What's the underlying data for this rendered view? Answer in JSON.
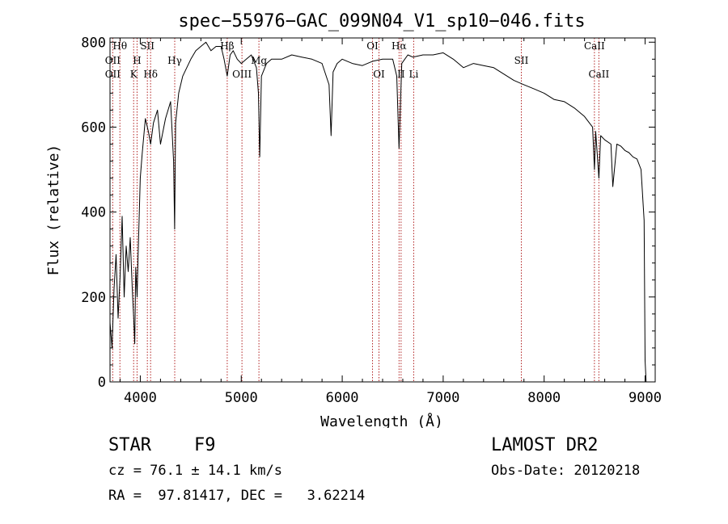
{
  "chart_data": {
    "type": "line",
    "title": "spec−55976−GAC_099N04_V1_sp10−046.fits",
    "xlabel": "Wavelength (Å)",
    "ylabel": "Flux (relative)",
    "xlim": [
      3700,
      9100
    ],
    "ylim": [
      0,
      810
    ],
    "x_ticks": [
      4000,
      5000,
      6000,
      7000,
      8000,
      9000
    ],
    "y_ticks": [
      0,
      200,
      400,
      600,
      800
    ],
    "grid": false,
    "series": [
      {
        "color": "#000000",
        "x": [
          3700,
          3720,
          3740,
          3760,
          3780,
          3800,
          3820,
          3840,
          3860,
          3880,
          3900,
          3920,
          3935,
          3945,
          3955,
          3968,
          3980,
          4000,
          4020,
          4050,
          4080,
          4102,
          4130,
          4170,
          4200,
          4250,
          4300,
          4330,
          4340,
          4350,
          4380,
          4420,
          4460,
          4500,
          4550,
          4600,
          4650,
          4700,
          4750,
          4800,
          4830,
          4861,
          4890,
          4920,
          4960,
          5000,
          5050,
          5100,
          5150,
          5170,
          5183,
          5200,
          5250,
          5300,
          5400,
          5500,
          5600,
          5700,
          5800,
          5870,
          5890,
          5910,
          5950,
          6000,
          6100,
          6200,
          6300,
          6400,
          6500,
          6540,
          6563,
          6590,
          6650,
          6700,
          6800,
          6900,
          7000,
          7100,
          7200,
          7300,
          7400,
          7500,
          7600,
          7700,
          7800,
          7900,
          8000,
          8100,
          8200,
          8300,
          8400,
          8480,
          8498,
          8510,
          8542,
          8560,
          8600,
          8662,
          8680,
          8720,
          8760,
          8800,
          8840,
          8880,
          8920,
          8960,
          8990,
          9000,
          9010
        ],
        "y": [
          140,
          80,
          220,
          300,
          150,
          250,
          390,
          200,
          320,
          260,
          340,
          220,
          150,
          90,
          270,
          200,
          310,
          480,
          540,
          620,
          590,
          560,
          610,
          640,
          560,
          620,
          660,
          520,
          360,
          610,
          680,
          720,
          740,
          760,
          780,
          790,
          800,
          780,
          790,
          790,
          760,
          720,
          770,
          780,
          760,
          750,
          760,
          770,
          740,
          680,
          530,
          720,
          750,
          760,
          760,
          770,
          765,
          760,
          750,
          700,
          580,
          730,
          750,
          760,
          750,
          745,
          755,
          760,
          760,
          720,
          550,
          750,
          770,
          765,
          770,
          770,
          775,
          760,
          740,
          750,
          745,
          740,
          725,
          710,
          700,
          690,
          680,
          665,
          660,
          645,
          625,
          600,
          500,
          590,
          480,
          580,
          570,
          560,
          460,
          560,
          555,
          545,
          540,
          530,
          525,
          500,
          380,
          50,
          0
        ]
      }
    ],
    "annotations": [
      {
        "label": "Hθ",
        "x": 3798,
        "row": "top"
      },
      {
        "label": "OII",
        "x": 3727,
        "row": "mid"
      },
      {
        "label": "OII",
        "x": 3727,
        "row": "low"
      },
      {
        "label": "SII",
        "x": 4070,
        "row": "top"
      },
      {
        "label": "H",
        "x": 3968,
        "row": "mid"
      },
      {
        "label": "K",
        "x": 3934,
        "row": "low"
      },
      {
        "label": "Hδ",
        "x": 4102,
        "row": "low"
      },
      {
        "label": "Hγ",
        "x": 4341,
        "row": "mid"
      },
      {
        "label": "Hβ",
        "x": 4861,
        "row": "top"
      },
      {
        "label": "OIII",
        "x": 5007,
        "row": "low"
      },
      {
        "label": "Mg",
        "x": 5175,
        "row": "mid"
      },
      {
        "label": "OI",
        "x": 6300,
        "row": "top"
      },
      {
        "label": "OI",
        "x": 6364,
        "row": "low"
      },
      {
        "label": "Hα",
        "x": 6563,
        "row": "top"
      },
      {
        "label": "II",
        "x": 6583,
        "row": "low"
      },
      {
        "label": "Li",
        "x": 6708,
        "row": "low"
      },
      {
        "label": "SII",
        "x": 7774,
        "row": "mid"
      },
      {
        "label": "CaII",
        "x": 8498,
        "row": "top"
      },
      {
        "label": "CaII",
        "x": 8542,
        "row": "low"
      }
    ],
    "marker_lines": [
      3727,
      3798,
      3934,
      3968,
      4070,
      4102,
      4341,
      4861,
      5007,
      5175,
      6300,
      6364,
      6563,
      6583,
      6708,
      7774,
      8498,
      8542
    ],
    "marker_color": "#b22222"
  },
  "footer": {
    "class_label": "STAR",
    "subclass": "F9",
    "survey": "LAMOST DR2",
    "cz": "cz = 76.1 ± 14.1 km/s",
    "obs_date": "Obs-Date: 20120218",
    "coords": "RA =  97.81417, DEC =   3.62214"
  }
}
